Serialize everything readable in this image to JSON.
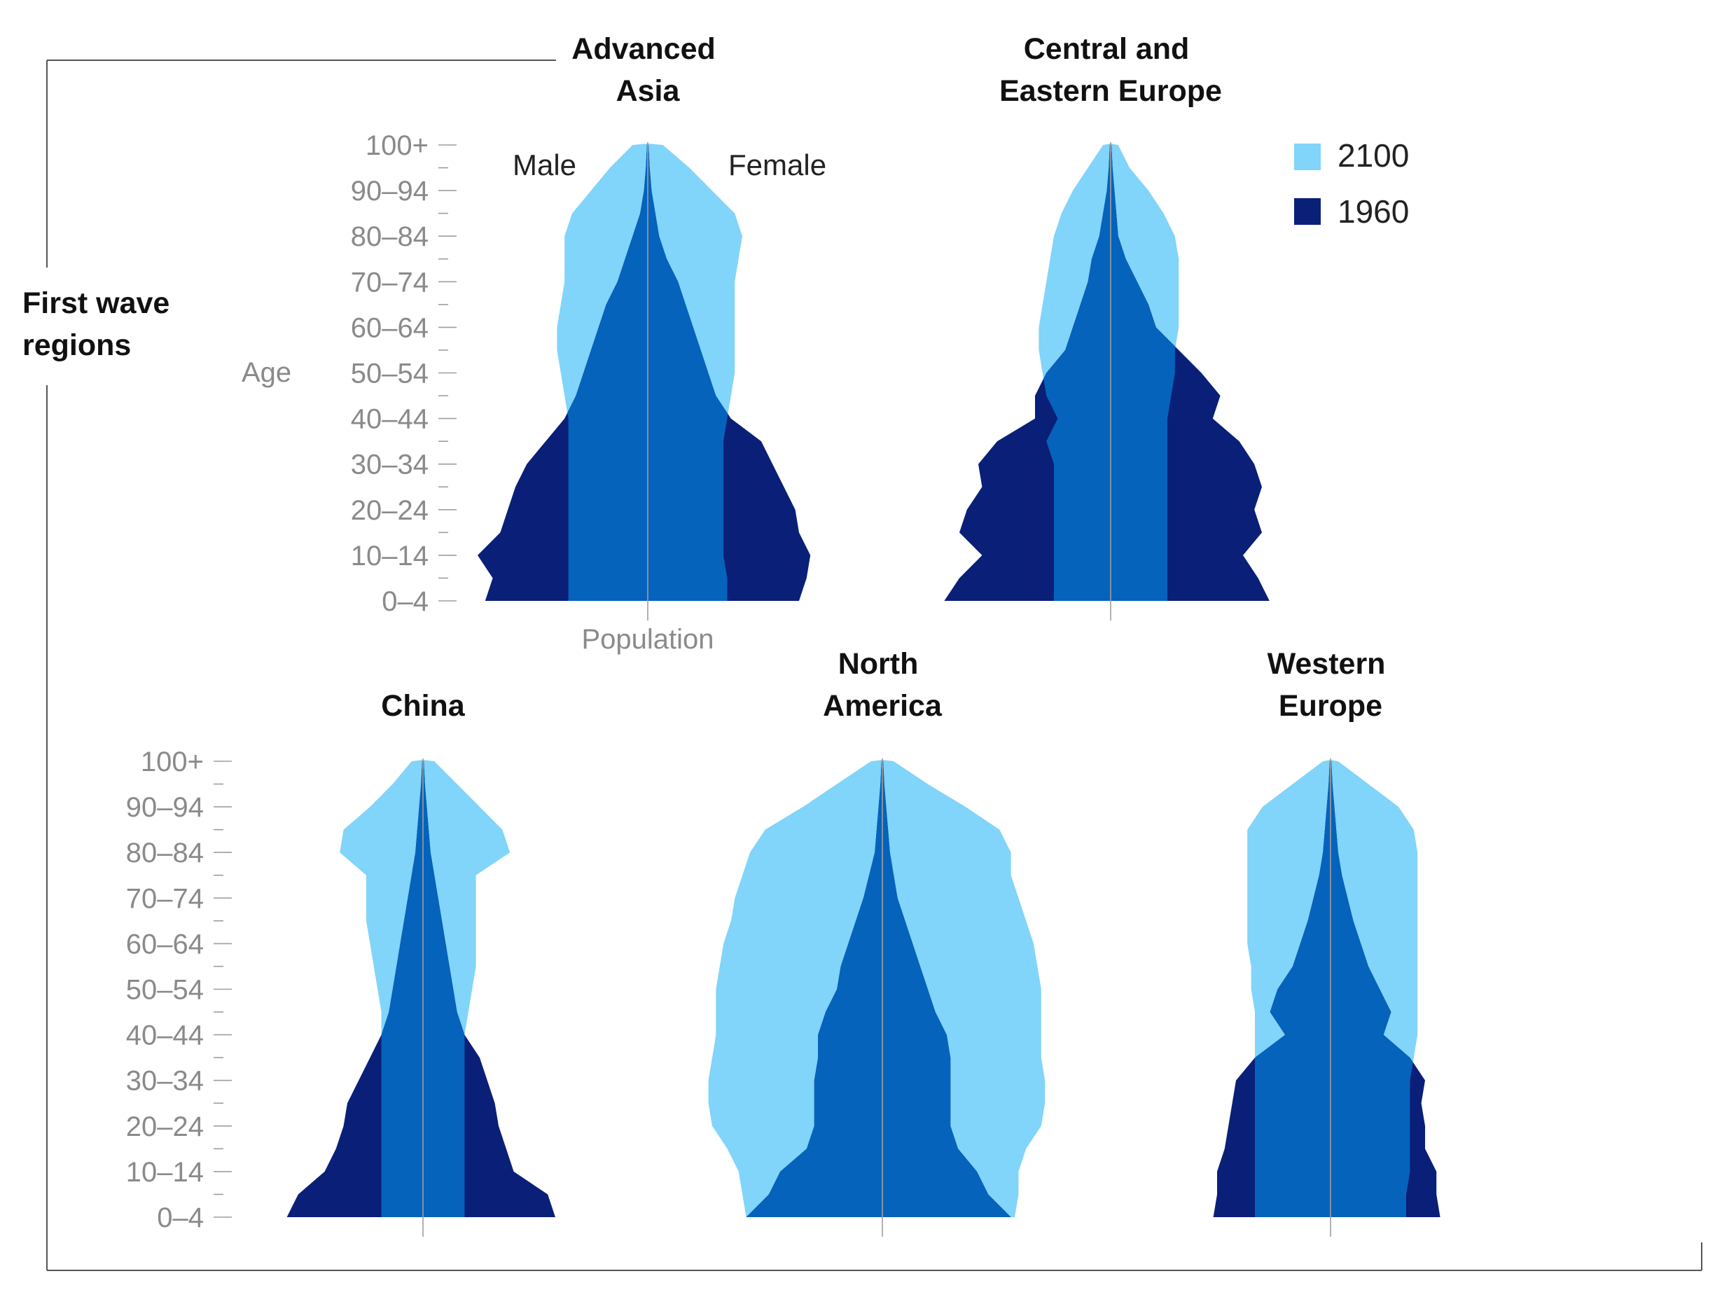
{
  "group_label": [
    "First wave",
    "regions"
  ],
  "axis": {
    "age_label": "Age",
    "population_label": "Population",
    "male_label": "Male",
    "female_label": "Female"
  },
  "legend": [
    {
      "label": "2100",
      "color": "#81d4fa"
    },
    {
      "label": "1960",
      "color": "#0a1f78"
    }
  ],
  "colors": {
    "y2100": "#81d4fa",
    "y1960": "#0a1f78",
    "overlap": "#0563bb",
    "axis": "#9e9e9e",
    "frame": "#555555"
  },
  "chart_data": [
    {
      "type": "area",
      "title": [
        "Advanced",
        "Asia"
      ],
      "age_groups": [
        "0-4",
        "5-9",
        "10-14",
        "15-19",
        "20-24",
        "25-29",
        "30-34",
        "35-39",
        "40-44",
        "45-49",
        "50-54",
        "55-59",
        "60-64",
        "65-69",
        "70-74",
        "75-79",
        "80-84",
        "85-89",
        "90-94",
        "95-99",
        "100+"
      ],
      "tick_labels": [
        "0–4",
        "10–14",
        "20–24",
        "30–34",
        "40–44",
        "50–54",
        "60–64",
        "70–74",
        "80–84",
        "90–94",
        "100+"
      ],
      "ylabel": "Age",
      "xlabel": "Population",
      "series": [
        {
          "name": "2100",
          "male": [
            21,
            21,
            21,
            21,
            21,
            21,
            21,
            21,
            21,
            22,
            23,
            24,
            24,
            23,
            22,
            22,
            22,
            20,
            15,
            10,
            4
          ],
          "female": [
            21,
            21,
            20,
            20,
            20,
            20,
            20,
            20,
            21,
            22,
            23,
            23,
            23,
            23,
            23,
            24,
            25,
            23,
            17,
            11,
            4
          ]
        },
        {
          "name": "1960",
          "male": [
            43,
            41,
            45,
            39,
            37,
            35,
            32,
            27,
            22,
            19,
            17,
            15,
            13,
            11,
            8,
            6,
            4,
            2,
            1,
            0.5,
            0.2
          ],
          "female": [
            40,
            42,
            43,
            40,
            39,
            36,
            33,
            30,
            22,
            18,
            16,
            14,
            12,
            10,
            8,
            5,
            3,
            2,
            1,
            0.5,
            0.2
          ]
        }
      ]
    },
    {
      "type": "area",
      "title": [
        "Central and",
        "Eastern Europe"
      ],
      "age_groups": [
        "0-4",
        "5-9",
        "10-14",
        "15-19",
        "20-24",
        "25-29",
        "30-34",
        "35-39",
        "40-44",
        "45-49",
        "50-54",
        "55-59",
        "60-64",
        "65-69",
        "70-74",
        "75-79",
        "80-84",
        "85-89",
        "90-94",
        "95-99",
        "100+"
      ],
      "series": [
        {
          "name": "2100",
          "male": [
            15,
            15,
            15,
            15,
            15,
            15,
            15,
            17,
            14,
            17,
            18,
            19,
            19,
            18,
            17,
            16,
            15,
            13,
            10,
            6,
            2
          ],
          "female": [
            15,
            15,
            15,
            15,
            15,
            15,
            15,
            15,
            15,
            16,
            17,
            17,
            18,
            18,
            18,
            18,
            17,
            14,
            10,
            5,
            2
          ]
        },
        {
          "name": "1960",
          "male": [
            44,
            40,
            34,
            40,
            38,
            34,
            35,
            30,
            20,
            20,
            17,
            12,
            10,
            8,
            6,
            5,
            3,
            2,
            1,
            0.5,
            0.2
          ],
          "female": [
            42,
            39,
            35,
            40,
            38,
            40,
            38,
            34,
            27,
            29,
            24,
            18,
            12,
            10,
            7,
            4,
            2,
            1.5,
            1,
            0.5,
            0.2
          ]
        }
      ]
    },
    {
      "type": "area",
      "title": [
        "China"
      ],
      "age_groups": [
        "0-4",
        "5-9",
        "10-14",
        "15-19",
        "20-24",
        "25-29",
        "30-34",
        "35-39",
        "40-44",
        "45-49",
        "50-54",
        "55-59",
        "60-64",
        "65-69",
        "70-74",
        "75-79",
        "80-84",
        "85-89",
        "90-94",
        "95-99",
        "100+"
      ],
      "tick_labels": [
        "0–4",
        "10–14",
        "20–24",
        "30–34",
        "40–44",
        "50–54",
        "60–64",
        "70–74",
        "80–84",
        "90–94",
        "100+"
      ],
      "series": [
        {
          "name": "2100",
          "male": [
            11,
            11,
            11,
            11,
            11,
            11,
            11,
            11,
            11,
            11,
            12,
            13,
            14,
            15,
            15,
            15,
            22,
            21,
            14,
            8,
            3
          ],
          "female": [
            11,
            11,
            11,
            11,
            11,
            11,
            11,
            11,
            11,
            12,
            13,
            14,
            14,
            14,
            14,
            14,
            23,
            21,
            15,
            9,
            3
          ]
        },
        {
          "name": "1960",
          "male": [
            36,
            33,
            26,
            23,
            21,
            20,
            17,
            14,
            11,
            9,
            8,
            7,
            6,
            5,
            4,
            3,
            2,
            1.5,
            1,
            0.5,
            0.2
          ],
          "female": [
            35,
            33,
            24,
            22,
            20,
            19,
            17,
            15,
            11,
            9,
            8,
            7,
            6,
            5,
            4,
            3,
            2,
            1.5,
            1,
            0.5,
            0.2
          ]
        }
      ]
    },
    {
      "type": "area",
      "title": [
        "North",
        "America"
      ],
      "age_groups": [
        "0-4",
        "5-9",
        "10-14",
        "15-19",
        "20-24",
        "25-29",
        "30-34",
        "35-39",
        "40-44",
        "45-49",
        "50-54",
        "55-59",
        "60-64",
        "65-69",
        "70-74",
        "75-79",
        "80-84",
        "85-89",
        "90-94",
        "95-99",
        "100+"
      ],
      "series": [
        {
          "name": "2100",
          "male": [
            36,
            37,
            38,
            41,
            45,
            46,
            46,
            45,
            44,
            44,
            44,
            43,
            42,
            40,
            39,
            37,
            35,
            31,
            21,
            12,
            3
          ],
          "female": [
            35,
            36,
            36,
            38,
            42,
            43,
            43,
            42,
            42,
            42,
            42,
            41,
            40,
            38,
            36,
            34,
            34,
            31,
            22,
            12,
            3
          ]
        },
        {
          "name": "1960",
          "male": [
            36,
            30,
            27,
            20,
            18,
            18,
            18,
            17,
            17,
            15,
            12,
            11,
            9,
            7,
            5,
            3.5,
            2,
            1.5,
            1,
            0.5,
            0.2
          ],
          "female": [
            34,
            28,
            25,
            20,
            18,
            18,
            18,
            18,
            17,
            14,
            12,
            10,
            8,
            6,
            4,
            3,
            2,
            1.5,
            1,
            0.5,
            0.2
          ]
        }
      ]
    },
    {
      "type": "area",
      "title": [
        "Western",
        "Europe"
      ],
      "age_groups": [
        "0-4",
        "5-9",
        "10-14",
        "15-19",
        "20-24",
        "25-29",
        "30-34",
        "35-39",
        "40-44",
        "45-49",
        "50-54",
        "55-59",
        "60-64",
        "65-69",
        "70-74",
        "75-79",
        "80-84",
        "85-89",
        "90-94",
        "95-99",
        "100+"
      ],
      "series": [
        {
          "name": "2100",
          "male": [
            20,
            20,
            20,
            20,
            20,
            20,
            20,
            20,
            20,
            20,
            21,
            21,
            22,
            22,
            22,
            22,
            22,
            22,
            18,
            10,
            2
          ],
          "female": [
            20,
            20,
            21,
            21,
            21,
            21,
            21,
            22,
            23,
            23,
            23,
            23,
            23,
            23,
            23,
            23,
            23,
            22,
            18,
            10,
            2
          ]
        },
        {
          "name": "1960",
          "male": [
            31,
            30,
            30,
            28,
            27,
            26,
            25,
            20,
            12,
            16,
            14,
            10,
            8,
            6,
            4.5,
            3,
            2,
            1.5,
            1,
            0.5,
            0.2
          ],
          "female": [
            29,
            28,
            28,
            25,
            25,
            24,
            25,
            21,
            14,
            16,
            13,
            10,
            8,
            6,
            4.5,
            3,
            2,
            1.5,
            1,
            0.5,
            0.2
          ]
        }
      ]
    }
  ]
}
